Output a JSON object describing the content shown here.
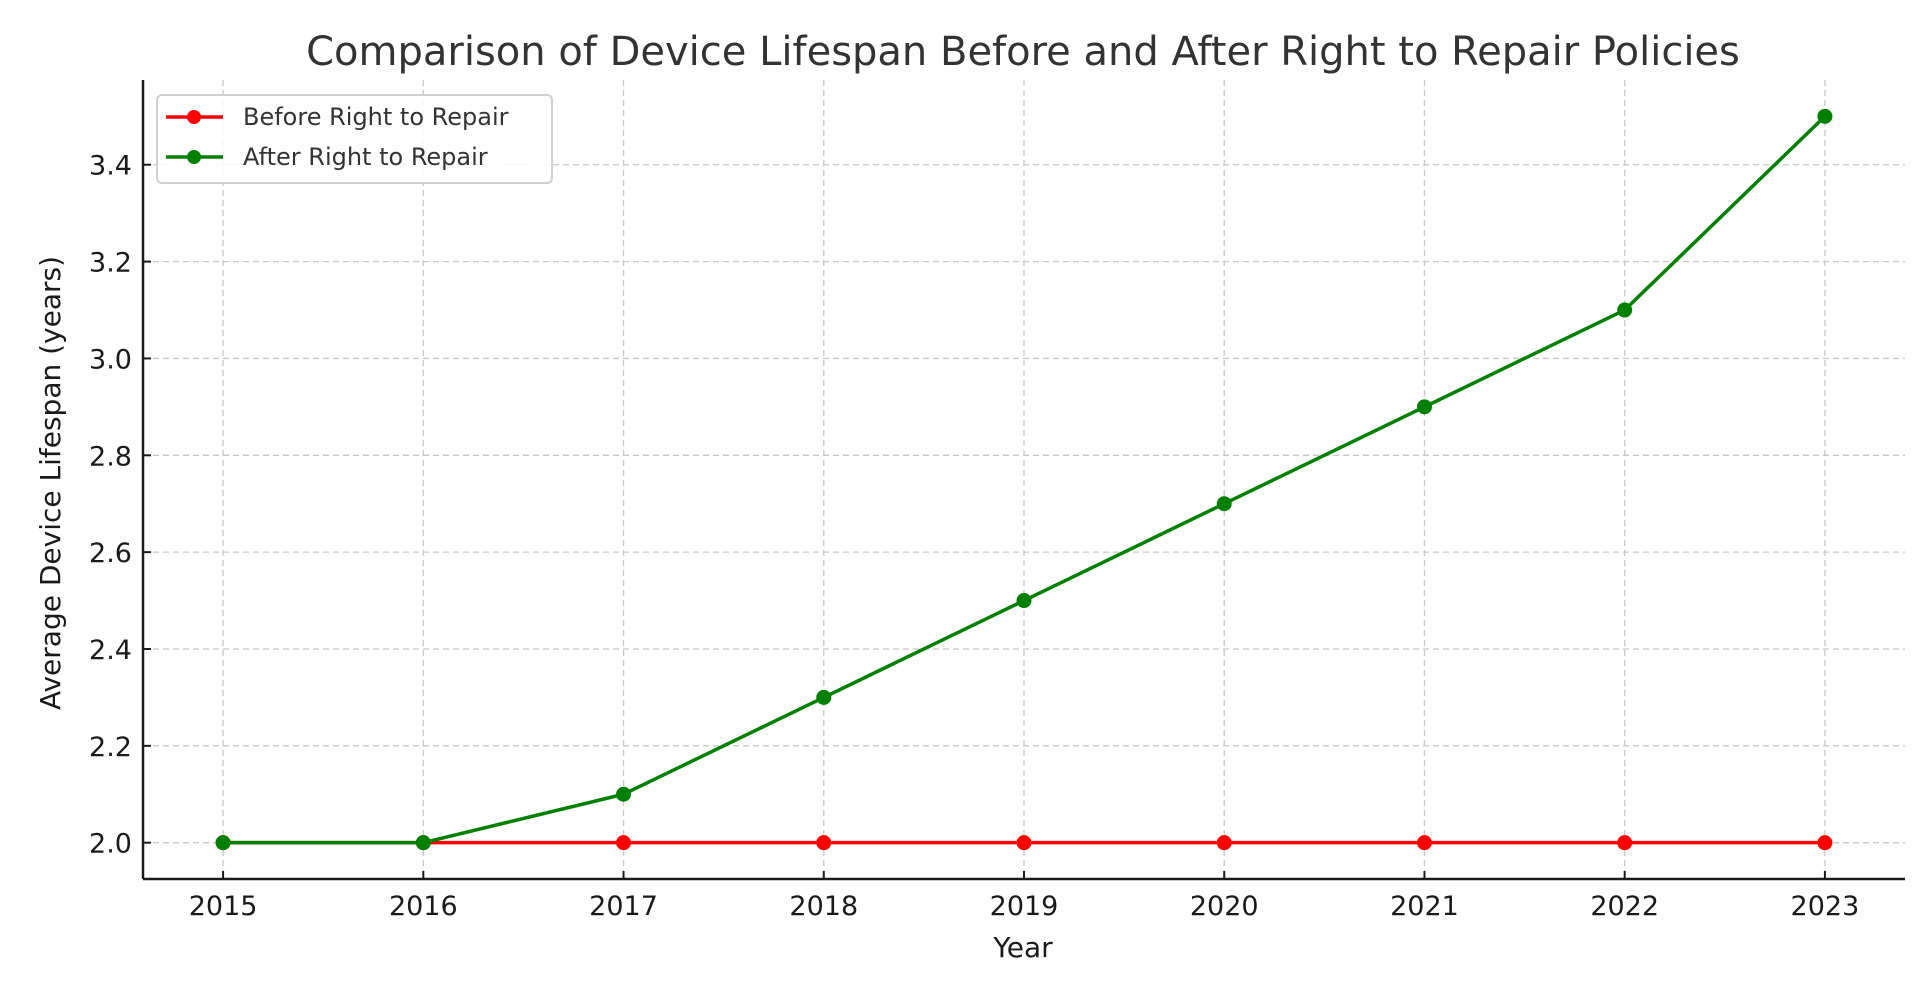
{
  "chart_data": {
    "type": "line",
    "title": "Comparison of Device Lifespan Before and After Right to Repair Policies",
    "xlabel": "Year",
    "ylabel": "Average Device Lifespan (years)",
    "x": [
      2015,
      2016,
      2017,
      2018,
      2019,
      2020,
      2021,
      2022,
      2023
    ],
    "x_tick_labels": [
      "2015",
      "2016",
      "2017",
      "2018",
      "2019",
      "2020",
      "2021",
      "2022",
      "2023"
    ],
    "y_ticks": [
      2.0,
      2.2,
      2.4,
      2.6,
      2.8,
      3.0,
      3.2,
      3.4
    ],
    "y_tick_labels": [
      "2.0",
      "2.2",
      "2.4",
      "2.6",
      "2.8",
      "3.0",
      "3.2",
      "3.4"
    ],
    "xlim": [
      2014.6,
      2023.4
    ],
    "ylim": [
      1.925,
      3.575
    ],
    "grid": true,
    "legend_position": "top-left",
    "series": [
      {
        "name": "Before Right to Repair",
        "color": "#ff0000",
        "marker": "circle",
        "values": [
          2.0,
          2.0,
          2.0,
          2.0,
          2.0,
          2.0,
          2.0,
          2.0,
          2.0
        ]
      },
      {
        "name": "After Right to Repair",
        "color": "#008000",
        "marker": "circle",
        "values": [
          2.0,
          2.0,
          2.1,
          2.3,
          2.5,
          2.7,
          2.9,
          3.1,
          3.5
        ]
      }
    ]
  }
}
